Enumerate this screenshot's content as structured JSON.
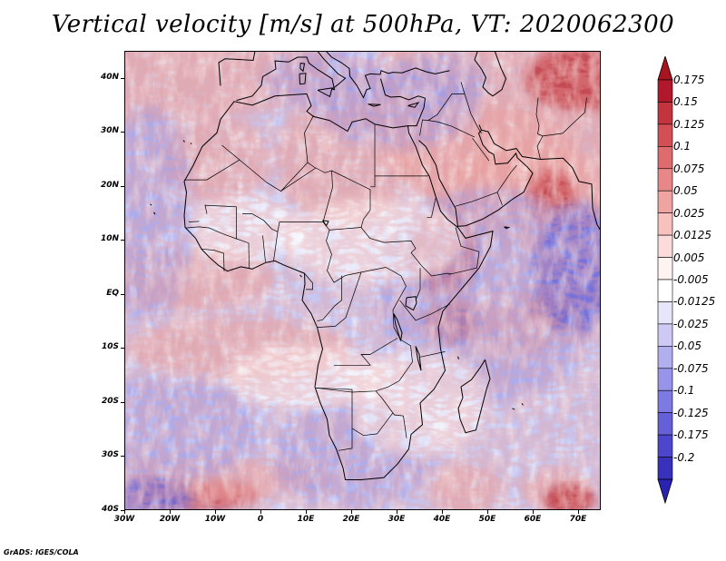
{
  "title": "Vertical velocity [m/s] at 500hPa, VT: 2020062300",
  "credit": "GrADS: IGES/COLA",
  "map": {
    "lon_range": [
      -30,
      75
    ],
    "lat_range": [
      -40,
      45
    ],
    "lat_ticks": [
      {
        "value": 40,
        "label": "40N"
      },
      {
        "value": 30,
        "label": "30N"
      },
      {
        "value": 20,
        "label": "20N"
      },
      {
        "value": 10,
        "label": "10N"
      },
      {
        "value": 0,
        "label": "EQ"
      },
      {
        "value": -10,
        "label": "10S"
      },
      {
        "value": -20,
        "label": "20S"
      },
      {
        "value": -30,
        "label": "30S"
      },
      {
        "value": -40,
        "label": "40S"
      }
    ],
    "lon_ticks": [
      {
        "value": -30,
        "label": "30W"
      },
      {
        "value": -20,
        "label": "20W"
      },
      {
        "value": -10,
        "label": "10W"
      },
      {
        "value": 0,
        "label": "0"
      },
      {
        "value": 10,
        "label": "10E"
      },
      {
        "value": 20,
        "label": "20E"
      },
      {
        "value": 30,
        "label": "30E"
      },
      {
        "value": 40,
        "label": "40E"
      },
      {
        "value": 50,
        "label": "50E"
      },
      {
        "value": 60,
        "label": "60E"
      },
      {
        "value": 70,
        "label": "70E"
      }
    ]
  },
  "colorbar": {
    "levels": [
      {
        "label": "0.175",
        "color": "#b2182b"
      },
      {
        "label": "0.15",
        "color": "#c4343f"
      },
      {
        "label": "0.125",
        "color": "#d24f55"
      },
      {
        "label": "0.1",
        "color": "#de6b6d"
      },
      {
        "label": "0.075",
        "color": "#e88787"
      },
      {
        "label": "0.05",
        "color": "#f0a4a2"
      },
      {
        "label": "0.025",
        "color": "#f7c1be"
      },
      {
        "label": "0.0125",
        "color": "#fbdcda"
      },
      {
        "label": "0.005",
        "color": "#fff3f2"
      },
      {
        "label": "-0.005",
        "color": "#ffffff"
      },
      {
        "label": "-0.0125",
        "color": "#e6e6fb"
      },
      {
        "label": "-0.025",
        "color": "#cccaf5"
      },
      {
        "label": "-0.05",
        "color": "#b1aff0"
      },
      {
        "label": "-0.075",
        "color": "#9794ea"
      },
      {
        "label": "-0.1",
        "color": "#7e7ae3"
      },
      {
        "label": "-0.125",
        "color": "#6560d8"
      },
      {
        "label": "-0.175",
        "color": "#4c46cc"
      },
      {
        "label": "-0.2",
        "color": "#3731bb"
      }
    ],
    "top_arrow_color": "#a8141f",
    "bottom_arrow_color": "#2a22b0"
  },
  "field_colors": {
    "background": "#c6c6f0",
    "up_strong": "#c0393f",
    "up": "#e8a2a0",
    "down": "#9d9ae6",
    "down_strong": "#6e69d8",
    "neutral": "#ffffff",
    "coast": "#000000"
  }
}
